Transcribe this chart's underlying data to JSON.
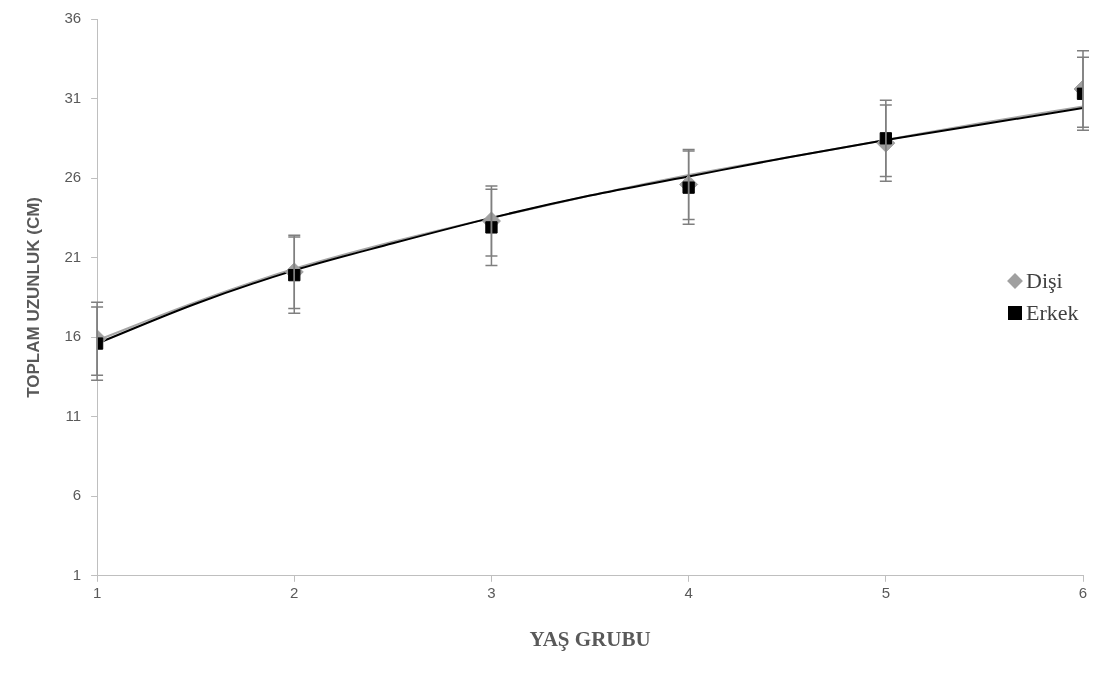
{
  "chart_data": {
    "type": "scatter",
    "xlabel": "YAŞ GRUBU",
    "ylabel": "TOPLAM UZUNLUK (CM)",
    "xlim": [
      1,
      6
    ],
    "xticks": [
      1,
      2,
      3,
      4,
      5,
      6
    ],
    "ylim": [
      1,
      36
    ],
    "yticks": [
      1,
      6,
      11,
      16,
      21,
      26,
      31,
      36
    ],
    "grid": false,
    "legend": "right",
    "series": [
      {
        "type": "line",
        "color": "#a6a6a6",
        "marker": "none",
        "x": [
          1,
          1.5,
          2,
          2.5,
          3,
          3.5,
          4,
          4.5,
          5,
          5.5,
          6
        ],
        "values": [
          15.8,
          18.2,
          20.3,
          22,
          23.5,
          24.9,
          26.2,
          27.3,
          28.4,
          29.5,
          30.5
        ]
      },
      {
        "type": "line",
        "color": "#000000",
        "marker": "none",
        "x": [
          1,
          1.5,
          2,
          2.5,
          3,
          3.5,
          4,
          4.5,
          5,
          5.5,
          6
        ],
        "values": [
          15.6,
          18.1,
          20.2,
          21.9,
          23.5,
          24.9,
          26.1,
          27.3,
          28.4,
          29.4,
          30.4
        ]
      },
      {
        "name": "Dişi",
        "color": "#a0a0a0",
        "marker": "diamond",
        "x": [
          1,
          2,
          3,
          4,
          5,
          6
        ],
        "values": [
          15.9,
          20.1,
          23.3,
          25.6,
          28.2,
          31.6
        ],
        "errors": [
          2.3,
          2.3,
          2.2,
          2.2,
          2.4,
          2.4
        ]
      },
      {
        "name": "Erkek",
        "color": "#000000",
        "marker": "square",
        "x": [
          1,
          2,
          3,
          4,
          5,
          6
        ],
        "values": [
          15.6,
          19.9,
          22.9,
          25.4,
          28.5,
          31.3
        ],
        "errors": [
          2.3,
          2.4,
          2.4,
          2.3,
          2.4,
          2.3
        ]
      }
    ]
  }
}
